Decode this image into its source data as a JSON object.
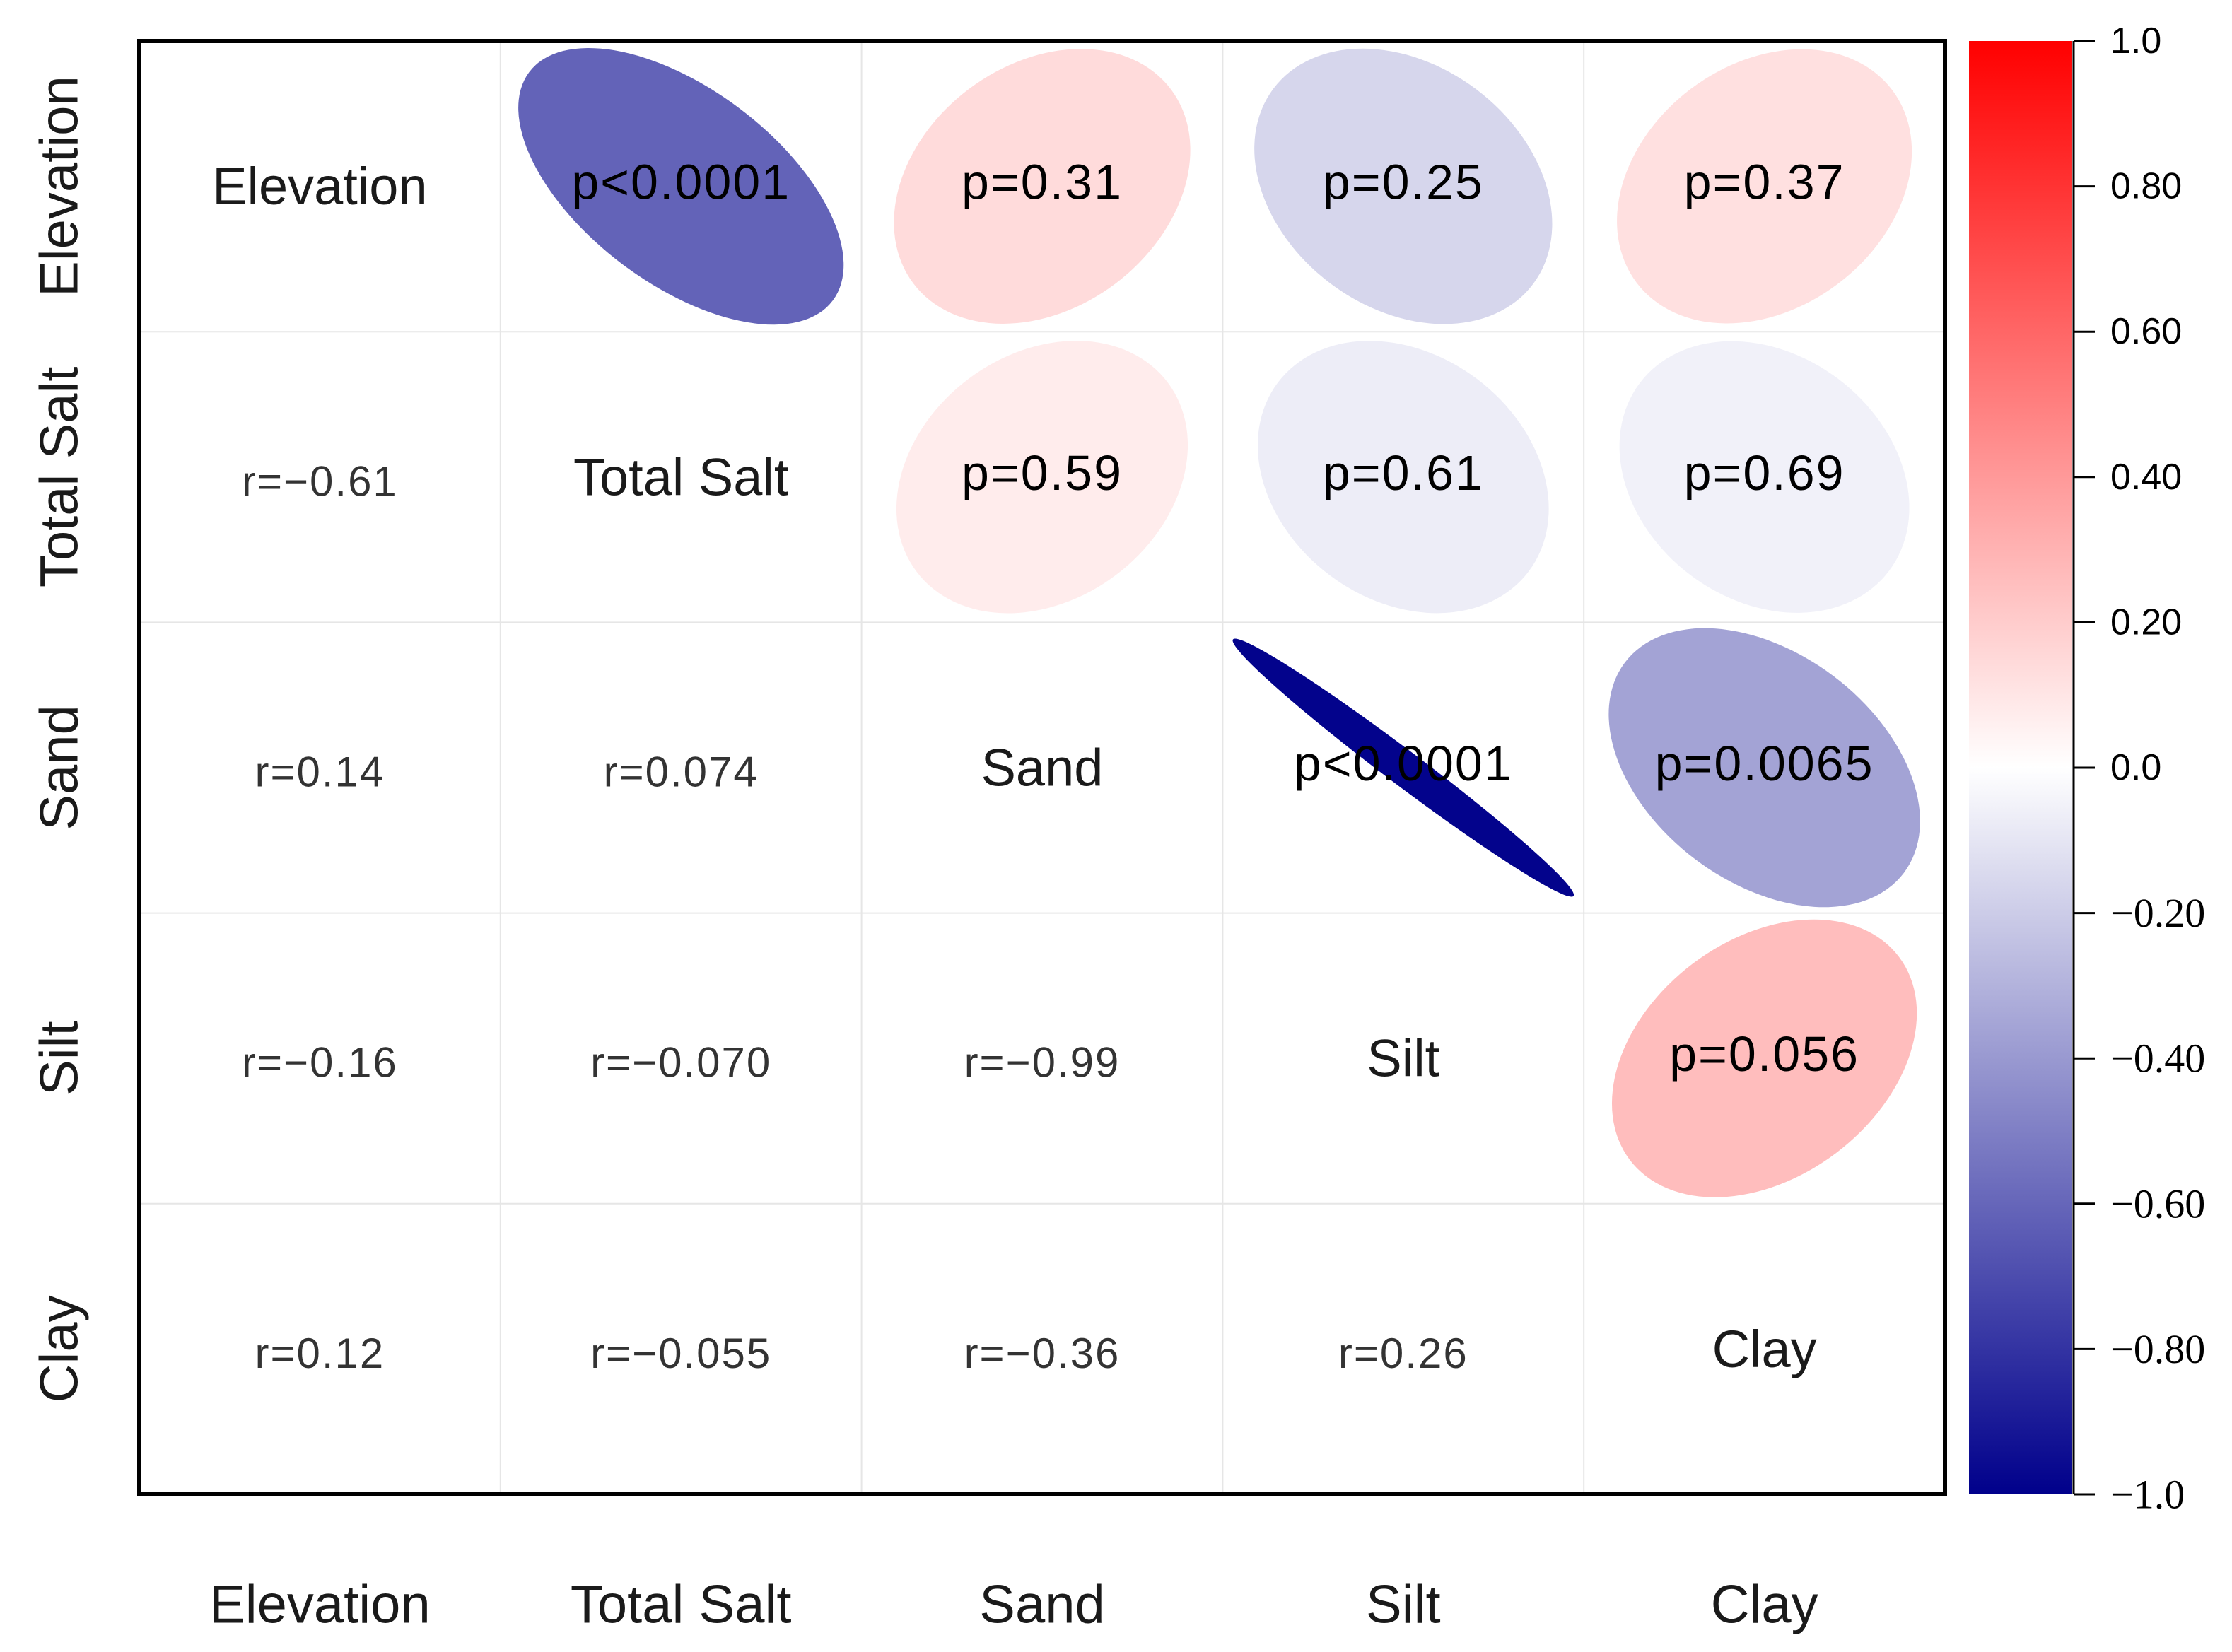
{
  "chart_data": {
    "type": "heatmap",
    "variables": [
      "Elevation",
      "Total Salt",
      "Sand",
      "Silt",
      "Clay"
    ],
    "correlations": [
      {
        "row": "Total Salt",
        "col": "Elevation",
        "r": -0.61,
        "r_label": "r=−0.61",
        "p_label": "p<0.0001"
      },
      {
        "row": "Sand",
        "col": "Elevation",
        "r": 0.14,
        "r_label": "r=0.14",
        "p_label": "p=0.31"
      },
      {
        "row": "Silt",
        "col": "Elevation",
        "r": -0.16,
        "r_label": "r=−0.16",
        "p_label": "p=0.25"
      },
      {
        "row": "Clay",
        "col": "Elevation",
        "r": 0.12,
        "r_label": "r=0.12",
        "p_label": "p=0.37"
      },
      {
        "row": "Sand",
        "col": "Total Salt",
        "r": 0.074,
        "r_label": "r=0.074",
        "p_label": "p=0.59"
      },
      {
        "row": "Silt",
        "col": "Total Salt",
        "r": -0.07,
        "r_label": "r=−0.070",
        "p_label": "p=0.61"
      },
      {
        "row": "Clay",
        "col": "Total Salt",
        "r": -0.055,
        "r_label": "r=−0.055",
        "p_label": "p=0.69"
      },
      {
        "row": "Silt",
        "col": "Sand",
        "r": -0.99,
        "r_label": "r=−0.99",
        "p_label": "p<0.0001"
      },
      {
        "row": "Clay",
        "col": "Sand",
        "r": -0.36,
        "r_label": "r=−0.36",
        "p_label": "p=0.0065"
      },
      {
        "row": "Clay",
        "col": "Silt",
        "r": 0.26,
        "r_label": "r=0.26",
        "p_label": "p=0.056"
      }
    ],
    "colorbar": {
      "min": -1.0,
      "max": 1.0,
      "ticks": [
        1.0,
        0.8,
        0.6,
        0.4,
        0.2,
        0.0,
        -0.2,
        -0.4,
        -0.6,
        -0.8,
        -1.0
      ],
      "tick_labels": [
        "1.0",
        "0.80",
        "0.60",
        "0.40",
        "0.20",
        "0.0",
        "−0.20",
        "−0.40",
        "−0.60",
        "−0.80",
        "−1.0"
      ],
      "colors": {
        "negative": "#00008b",
        "zero": "#ffffff",
        "positive": "#ff0000"
      }
    },
    "grid": true,
    "colors": {
      "frame": "#000000",
      "grid": "#e6e6e6",
      "text": "#1a1a1a"
    }
  }
}
